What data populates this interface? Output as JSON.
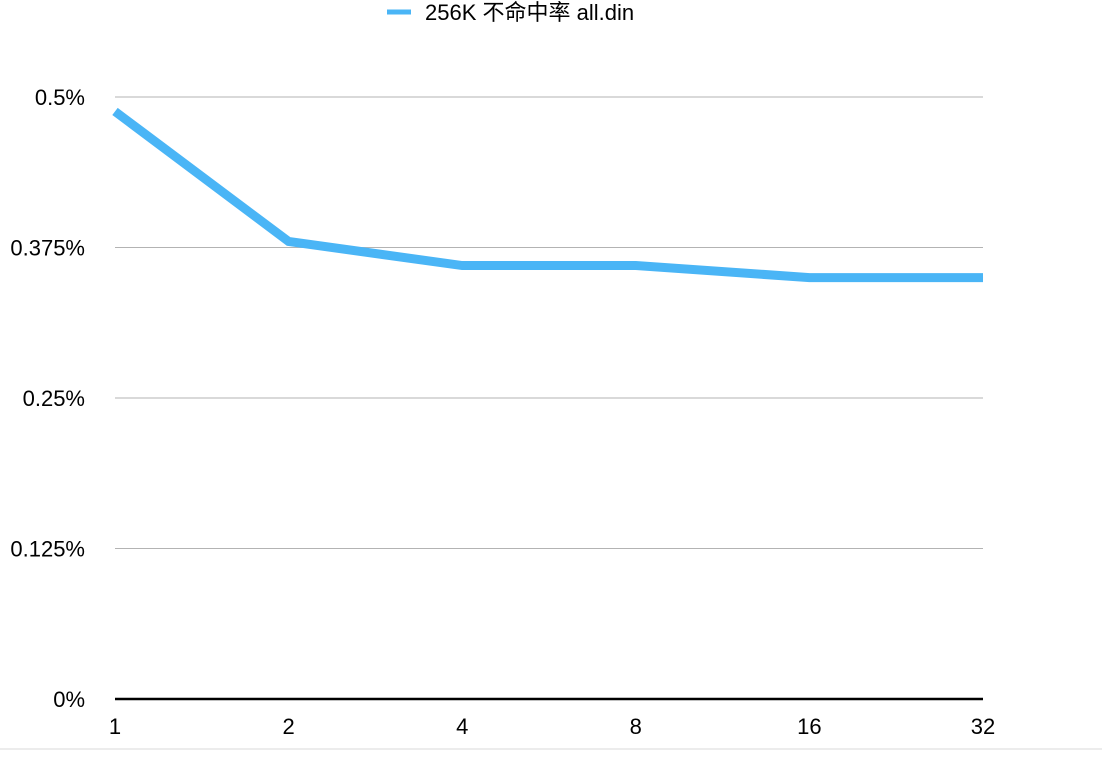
{
  "chart_data": {
    "type": "line",
    "categories": [
      "1",
      "2",
      "4",
      "8",
      "16",
      "32"
    ],
    "series": [
      {
        "name": "256K 不命中率 all.din",
        "values": [
          0.488,
          0.38,
          0.36,
          0.36,
          0.35,
          0.35
        ],
        "color": "#4ab5f6"
      }
    ],
    "y_ticks": [
      "0%",
      "0.125%",
      "0.25%",
      "0.375%",
      "0.5%"
    ],
    "y_tick_values": [
      0,
      0.125,
      0.25,
      0.375,
      0.5
    ],
    "ylim": [
      0,
      0.5
    ],
    "y_unit": "%",
    "grid": true,
    "legend_position": "top-center"
  }
}
